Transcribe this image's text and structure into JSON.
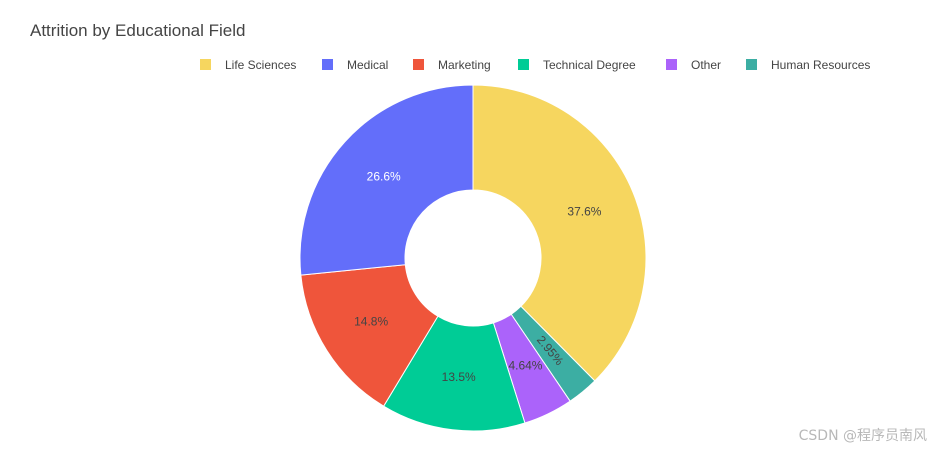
{
  "chart_data": {
    "type": "pie",
    "hole": true,
    "title": "Attrition by Educational Field",
    "legend_position": "top-right",
    "slices": [
      {
        "label": "Life Sciences",
        "percent": 37.6,
        "display": "37.6%",
        "color": "#F6D65F",
        "label_color": "#444444"
      },
      {
        "label": "Medical",
        "percent": 26.6,
        "display": "26.6%",
        "color": "#636EFA",
        "label_color": "#ffffff"
      },
      {
        "label": "Marketing",
        "percent": 14.8,
        "display": "14.8%",
        "color": "#EF553B",
        "label_color": "#444444"
      },
      {
        "label": "Technical Degree",
        "percent": 13.5,
        "display": "13.5%",
        "color": "#00CC96",
        "label_color": "#444444"
      },
      {
        "label": "Other",
        "percent": 4.64,
        "display": "4.64%",
        "color": "#AB63FA",
        "label_color": "#444444"
      },
      {
        "label": "Human Resources",
        "percent": 2.95,
        "display": "2.95%",
        "color": "#3CAEA3",
        "label_color": "#444444"
      }
    ],
    "draw_order": [
      "Life Sciences",
      "Human Resources",
      "Other",
      "Technical Degree",
      "Marketing",
      "Medical"
    ]
  },
  "watermark": "CSDN @程序员南风"
}
